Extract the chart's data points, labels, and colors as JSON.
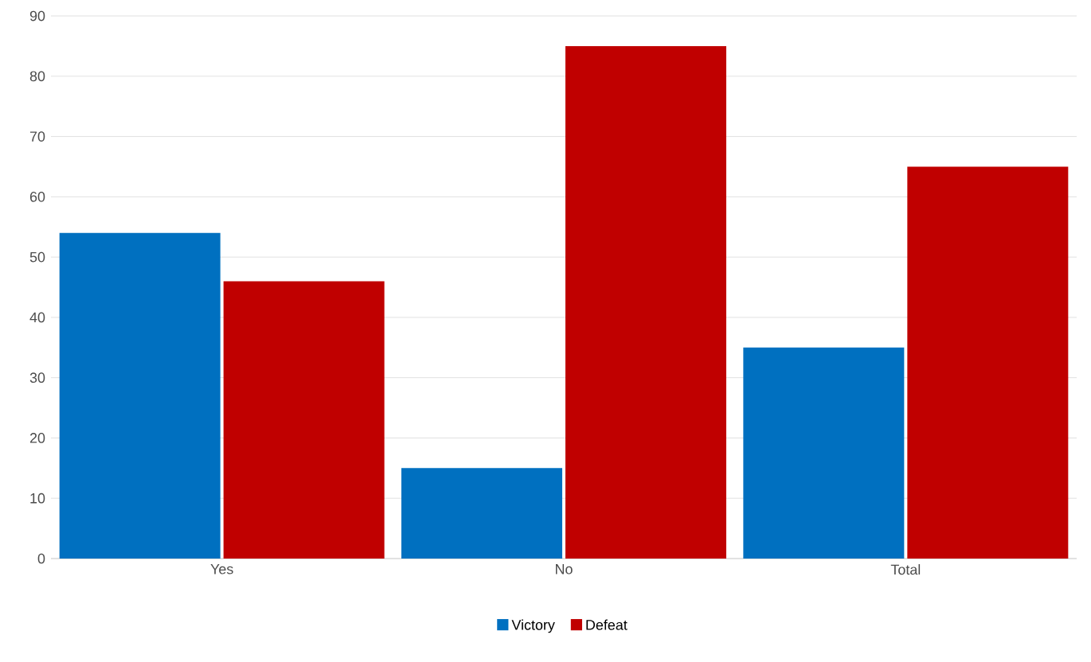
{
  "chart_data": {
    "type": "bar",
    "categories": [
      "Yes",
      "No",
      "Total"
    ],
    "series": [
      {
        "name": "Victory",
        "color": "#0070c0",
        "values": [
          54,
          15,
          35
        ]
      },
      {
        "name": "Defeat",
        "color": "#c00000",
        "values": [
          46,
          85,
          65
        ]
      }
    ],
    "ylim": [
      0,
      90
    ],
    "yticks": [
      0,
      10,
      20,
      30,
      40,
      50,
      60,
      70,
      80,
      90
    ],
    "grid": "y",
    "legend": "bottom"
  }
}
